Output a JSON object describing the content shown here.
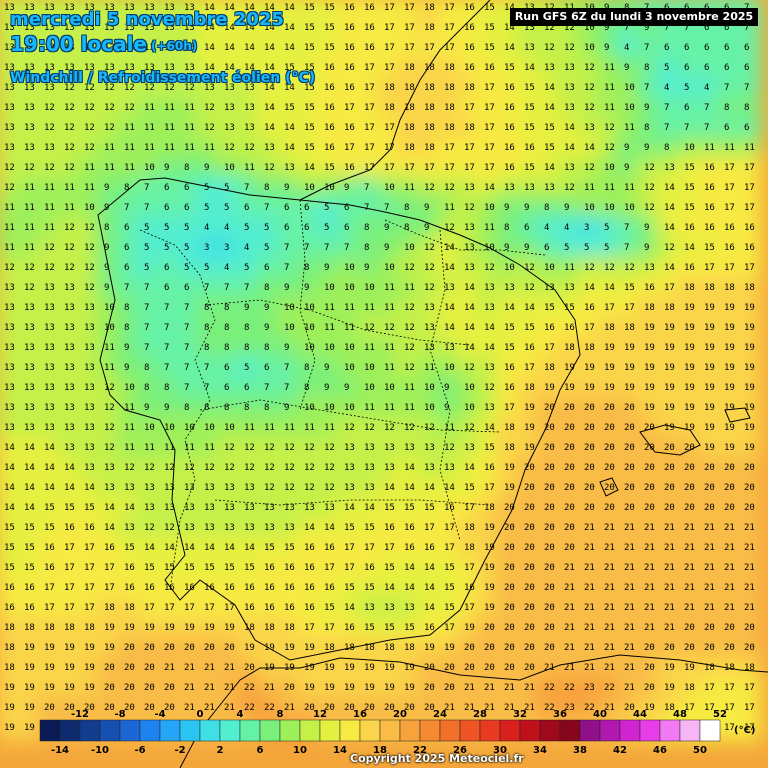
{
  "header": {
    "date": "mercredi 5 novembre 2025",
    "time": "19:00 locale",
    "lead": "(+60h)",
    "variable": "Windchill / Refroidissement éolien (°C)"
  },
  "run_info": "Run GFS 6Z du lundi 3 novembre 2025",
  "copyright": "Copyright 2025 Meteociel.fr",
  "legend": {
    "unit": "(°C)",
    "labels": [
      -14,
      -12,
      -10,
      -8,
      -6,
      -4,
      -2,
      0,
      2,
      4,
      6,
      8,
      10,
      12,
      14,
      16,
      18,
      20,
      22,
      24,
      26,
      28,
      30,
      32,
      34,
      36,
      38,
      40,
      42,
      44,
      46,
      48,
      50,
      52
    ],
    "colors": [
      "#0a1a55",
      "#0d2b6e",
      "#123d8f",
      "#1650b0",
      "#1c66d6",
      "#1e82f0",
      "#22a6f5",
      "#2cc4f2",
      "#3ee0e6",
      "#52eed0",
      "#66f2a6",
      "#7af07a",
      "#9ef05a",
      "#c4f048",
      "#e6f040",
      "#f7ea42",
      "#fad44a",
      "#f9bc46",
      "#f8a23c",
      "#f58a32",
      "#f2702a",
      "#ee5424",
      "#e83a20",
      "#d8201c",
      "#c0101c",
      "#a0081c",
      "#86061c",
      "#90108a",
      "#b018b0",
      "#d024d0",
      "#e83ee8",
      "#f27af2",
      "#f6b6f6",
      "#ffffff"
    ]
  },
  "grid_values": [
    "13 13 13 13 13 13 13 13 13 13 14 14 14 14 14 15 15 16 16 17 17 18 17 16 15 14 13 12 11 10 9 8 7 6 6 6 6 7",
    "13 13 13 13 13 13 13 13 13 13 14 14 14 14 14 15 15 16 16 17 17 18 17 16 15 14 13 12 12 10 9 7 9 7 7 6 6 7",
    "13 13 13 13 13 13 13 13 13 13 14 14 14 14 14 15 15 16 16 17 17 17 17 16 15 14 13 12 12 10 9 4 7 6 6 6 6 6",
    "13 13 13 13 13 13 13 13 13 13 14 14 14 14 15 15 16 16 17 17 18 18 18 16 16 15 14 13 13 12 11 9 8 5 6 6 6 6",
    "13 13 13 12 12 12 12 12 12 12 13 13 13 14 14 15 16 16 17 18 18 18 18 18 17 16 15 14 13 12 11 10 7 4 5 4 7 7",
    "13 13 12 12 12 12 12 11 11 11 12 13 13 14 15 15 16 17 17 18 18 18 18 17 17 16 15 14 13 12 11 10 9 7 6 7 8 8",
    "13 13 12 12 12 12 11 11 11 11 12 13 13 14 14 15 16 16 17 17 18 18 18 18 17 16 15 15 14 13 12 11 8 7 7 7 6 6",
    "13 13 13 12 12 11 11 11 11 11 11 12 12 13 14 15 16 17 17 17 18 18 17 17 17 16 16 15 14 14 12 9 9 8 10 11 11 11",
    "12 12 12 12 11 11 11 10 9 8 9 10 11 12 13 14 15 16 17 17 17 17 17 17 17 16 15 14 13 12 10 9 12 13 15 16 17 17",
    "12 11 11 11 11 9 8 7 6 6 5 5 7 8 9 10 10 9 7 10 11 12 12 13 14 13 13 13 12 11 11 11 12 14 15 16 17 17",
    "11 11 11 11 10 9 7 7 6 6 5 5 6 7 6 6 5 6 7 7 8 9 11 12 10 9 9 8 9 10 10 10 12 14 15 16 17 17",
    "11 11 11 12 12 8 6 5 5 5 4 4 5 5 6 6 5 6 8 9 8 9 12 13 11 8 6 4 4 3 5 7 9 14 16 16 16 16",
    "11 11 12 12 12 9 6 5 5 5 3 3 4 5 7 7 7 7 8 9 10 12 14 13 10 9 9 6 5 5 5 7 9 12 14 15 16 16",
    "12 12 12 12 12 9 6 5 6 5 5 4 5 6 7 8 9 10 9 10 12 12 14 13 12 10 12 10 11 12 12 12 13 14 16 17 17 17",
    "13 12 13 13 12 9 7 7 6 6 7 7 7 8 9 9 10 10 10 11 11 12 13 14 13 13 12 13 13 14 14 15 16 17 18 18 18 18",
    "13 13 13 13 13 10 8 7 7 7 8 8 9 9 10 10 11 11 11 11 12 13 14 14 13 14 14 15 15 16 17 17 18 18 19 19 19 19",
    "13 13 13 13 13 10 8 7 7 7 8 8 8 9 10 10 11 11 12 12 12 13 14 14 14 15 15 16 16 17 18 18 19 19 19 19 19 19",
    "13 13 13 13 13 11 9 7 7 7 8 8 8 8 9 10 10 10 11 11 12 13 13 14 14 15 16 17 18 18 19 19 19 19 19 19 19 19",
    "13 13 13 13 13 11 9 8 7 7 7 6 5 6 7 8 9 10 10 11 12 11 10 12 13 16 17 18 19 19 19 19 19 19 19 19 19 19",
    "13 13 13 13 13 12 10 8 8 7 7 6 6 7 7 8 9 9 10 10 11 10 9 10 12 16 18 19 19 19 19 19 19 19 19 19 19 19",
    "13 13 13 13 13 12 11 9 9 8 8 8 8 8 9 10 10 10 11 11 11 10 9 10 13 17 19 20 20 20 20 20 19 19 19 19 19 19",
    "13 13 13 13 13 12 11 10 10 10 10 10 11 11 11 11 11 12 12 12 12 12 11 12 14 18 19 20 20 20 20 20 20 19 19 19 19 19",
    "14 14 14 13 13 12 11 11 11 11 11 12 12 12 12 12 12 13 13 13 13 13 12 13 15 18 19 20 20 20 20 20 20 20 20 19 19 19",
    "14 14 14 14 13 13 12 12 12 12 12 12 12 12 12 12 12 13 13 13 14 13 13 14 16 19 20 20 20 20 20 20 20 20 20 20 20 20",
    "14 14 14 14 14 13 13 13 13 13 13 13 13 12 12 12 12 13 13 14 14 14 14 15 17 19 20 20 20 20 20 20 20 20 20 20 20 20",
    "14 14 15 15 15 14 14 13 13 13 13 13 13 13 13 13 13 14 14 15 15 15 16 17 18 20 20 20 20 20 20 20 20 20 20 20 20 20",
    "15 15 15 16 16 14 13 12 12 13 13 13 13 13 13 14 14 15 15 16 16 17 17 18 19 20 20 20 20 21 21 21 21 21 21 21 21 21",
    "15 15 16 17 17 16 15 14 14 14 14 14 14 15 15 16 16 17 17 17 16 16 17 18 19 20 20 20 20 21 21 21 21 21 21 21 21 21",
    "15 15 16 17 17 17 16 15 15 15 15 15 15 16 16 16 17 17 16 15 14 14 15 17 19 20 20 20 21 21 21 21 21 21 21 21 21 21",
    "16 16 17 17 17 17 16 16 16 16 16 16 16 16 16 16 16 15 15 14 14 14 15 16 19 20 20 20 21 21 21 21 21 21 21 21 21 21",
    "16 16 17 17 17 18 18 17 17 17 17 17 16 16 16 16 15 14 13 13 13 14 15 17 19 20 20 20 21 21 21 21 21 21 21 21 21 21",
    "18 18 18 18 18 19 19 19 19 19 19 19 18 18 18 17 17 16 15 15 15 16 17 19 20 20 20 20 21 21 21 21 21 21 20 20 20 20",
    "18 19 19 19 19 19 20 20 20 20 20 20 19 19 19 19 18 18 18 18 18 19 19 20 20 20 20 20 21 21 21 21 20 20 20 20 20 20",
    "18 19 19 19 19 20 20 20 21 21 21 21 20 19 19 19 19 19 19 19 19 20 20 20 20 20 20 21 21 21 21 21 20 19 19 18 18 18",
    "19 19 19 19 19 20 20 20 20 21 21 21 22 21 20 19 19 19 19 19 19 20 20 21 21 21 21 22 22 23 22 21 20 19 18 17 17 17",
    "19 19 20 20 20 20 20 20 20 21 21 21 22 22 21 20 20 20 20 20 20 20 21 21 21 21 21 22 23 22 21 20 19 18 17 17 17 17",
    "19 19 20 20 20 20 20 20 20 20 21 21 21 22 22 22 21 21 21 21 21 21 21 21 21 21 21 21 21 21 20 19 18 17 17 17 17 17"
  ]
}
